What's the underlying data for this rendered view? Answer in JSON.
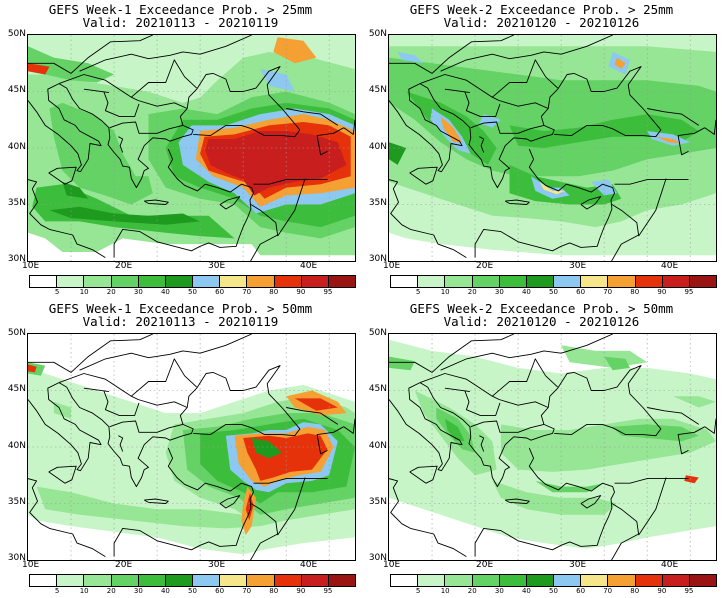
{
  "panels": [
    {
      "title": "GEFS Week-1 Exceedance Prob. > 25mm",
      "valid": "Valid: 20210113 - 20210119"
    },
    {
      "title": "GEFS Week-2 Exceedance Prob. > 25mm",
      "valid": "Valid: 20210120 - 20210126"
    },
    {
      "title": "GEFS Week-1 Exceedance Prob. > 50mm",
      "valid": "Valid: 20210113 - 20210119"
    },
    {
      "title": "GEFS Week-2 Exceedance Prob. > 50mm",
      "valid": "Valid: 20210120 - 20210126"
    }
  ],
  "lat_labels": [
    "50N",
    "45N",
    "40N",
    "35N",
    "30N"
  ],
  "lon_labels": [
    "10E",
    "20E",
    "30E",
    "40E"
  ],
  "colorbar": {
    "labels": [
      "5",
      "10",
      "20",
      "30",
      "40",
      "50",
      "60",
      "70",
      "80",
      "90",
      "95"
    ],
    "colors": [
      "#ffffff",
      "#c8f5c8",
      "#96e696",
      "#64d264",
      "#3cbe3c",
      "#1e9b1e",
      "#8cc8f0",
      "#f5e68c",
      "#f5a032",
      "#e6320a",
      "#c81e1e",
      "#9b1414"
    ]
  }
}
